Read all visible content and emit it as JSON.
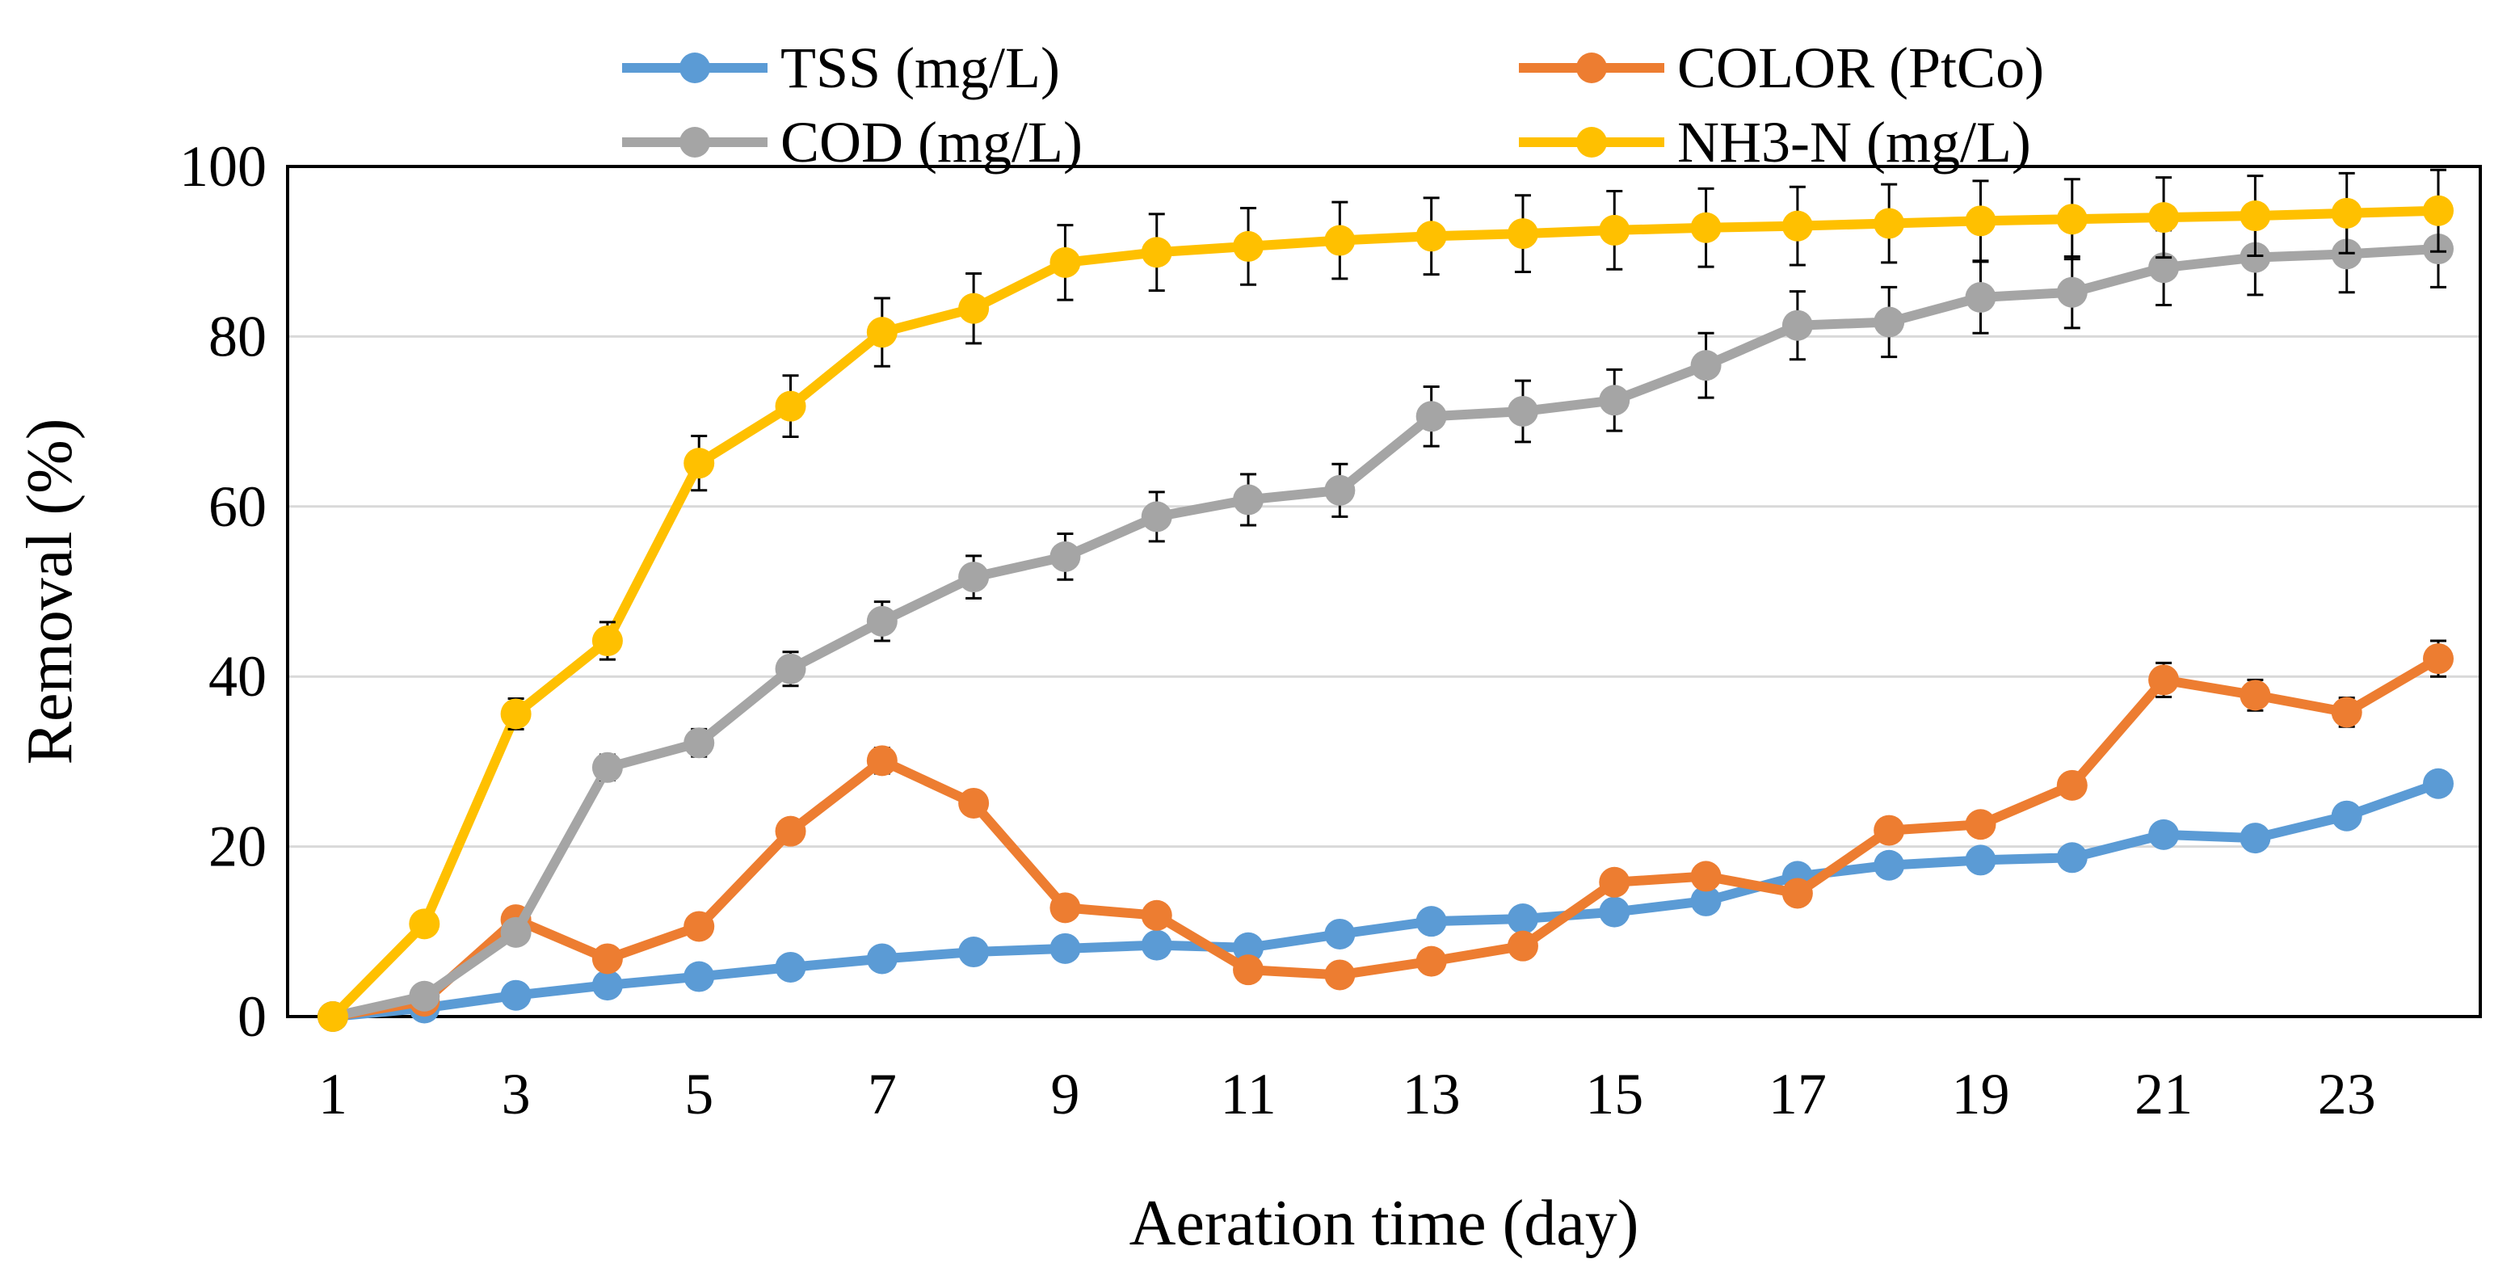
{
  "chart_data": {
    "type": "line",
    "title": "",
    "xlabel": "Aeration time (day)",
    "ylabel": "Removal (%)",
    "xlim": [
      1,
      24
    ],
    "ylim": [
      0,
      100
    ],
    "xticks": [
      1,
      3,
      5,
      7,
      9,
      11,
      13,
      15,
      17,
      19,
      21,
      23
    ],
    "yticks": [
      0,
      20,
      40,
      60,
      80,
      100
    ],
    "grid": "horizontal",
    "legend_position": "top",
    "x": [
      1,
      2,
      3,
      4,
      5,
      6,
      7,
      8,
      9,
      10,
      11,
      12,
      13,
      14,
      15,
      16,
      17,
      18,
      19,
      20,
      21,
      22,
      23,
      24
    ],
    "series": [
      {
        "name": "TSS (mg/L)",
        "color": "#5b9bd5",
        "values": [
          0,
          1,
          2.5,
          3.7,
          4.7,
          5.8,
          6.8,
          7.6,
          8,
          8.4,
          8.1,
          9.7,
          11.2,
          11.5,
          12.3,
          13.6,
          16.5,
          17.8,
          18.4,
          18.7,
          21.4,
          21,
          23.6,
          27.4
        ],
        "errors": null
      },
      {
        "name": "COLOR (PtCo)",
        "color": "#ed7d31",
        "values": [
          0,
          1.8,
          11.4,
          6.8,
          10.6,
          21.8,
          30.1,
          25.1,
          12.8,
          11.9,
          5.5,
          4.9,
          6.5,
          8.3,
          15.8,
          16.5,
          14.5,
          21.9,
          22.6,
          27.2,
          39.6,
          37.8,
          35.8,
          42.1
        ],
        "errors": [
          0,
          0.3,
          0.8,
          0.6,
          0.8,
          1.3,
          1.5,
          1.2,
          0.9,
          0.8,
          0.4,
          0.4,
          0.5,
          0.6,
          1,
          1,
          0.8,
          1.2,
          1.2,
          1.4,
          2,
          1.8,
          1.7,
          2.1
        ]
      },
      {
        "name": "COD (mg/L)",
        "color": "#a5a5a5",
        "values": [
          0,
          2.4,
          9.9,
          29.3,
          32.2,
          40.9,
          46.5,
          51.7,
          54.1,
          58.8,
          60.8,
          61.9,
          70.6,
          71.2,
          72.5,
          76.6,
          81.3,
          81.7,
          84.6,
          85.2,
          88.1,
          89.3,
          89.7,
          90.3
        ],
        "errors": [
          0,
          0.3,
          1,
          1.5,
          1.6,
          2,
          2.3,
          2.5,
          2.7,
          2.9,
          3,
          3.1,
          3.5,
          3.6,
          3.6,
          3.8,
          4,
          4.1,
          4.2,
          4.2,
          4.4,
          4.4,
          4.5,
          4.5
        ]
      },
      {
        "name": "NH3-N (mg/L)",
        "color": "#ffc000",
        "values": [
          0,
          10.9,
          35.6,
          44.2,
          65.1,
          71.8,
          80.5,
          83.3,
          88.7,
          89.9,
          90.6,
          91.3,
          91.8,
          92.1,
          92.5,
          92.8,
          93,
          93.3,
          93.6,
          93.8,
          94,
          94.2,
          94.5,
          94.8
        ],
        "errors": [
          0,
          0.5,
          1.8,
          2.2,
          3.2,
          3.6,
          4,
          4.1,
          4.4,
          4.5,
          4.5,
          4.5,
          4.5,
          4.5,
          4.6,
          4.6,
          4.6,
          4.6,
          4.7,
          4.7,
          4.7,
          4.7,
          4.7,
          4.8
        ]
      }
    ],
    "legend_order": [
      0,
      1,
      2,
      3
    ]
  }
}
